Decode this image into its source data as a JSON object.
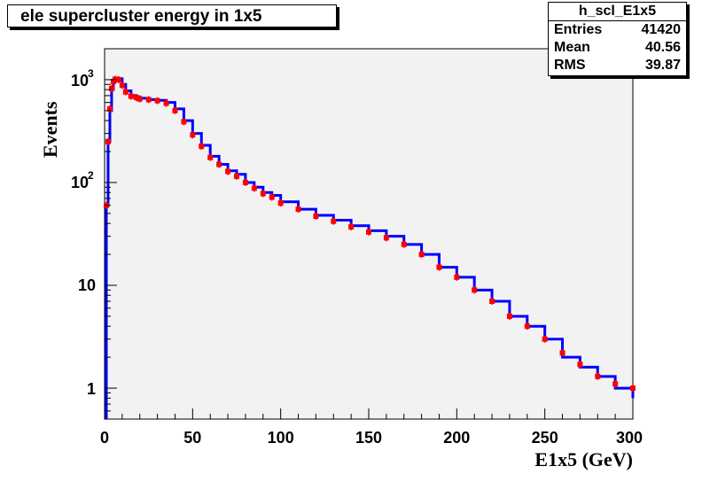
{
  "chart_data": {
    "type": "bar",
    "title": "ele supercluster energy in 1x5",
    "xlabel": "E1x5 (GeV)",
    "ylabel": "Events",
    "xlim": [
      0,
      300
    ],
    "ylim": [
      0.5,
      2000
    ],
    "yscale": "log",
    "grid": false,
    "x_ticks": [
      "0",
      "50",
      "100",
      "150",
      "200",
      "250",
      "300"
    ],
    "y_ticks": [
      "1",
      "10",
      "10^2",
      "10^3"
    ],
    "stats": {
      "name": "h_scl_E1x5",
      "entries_label": "Entries",
      "entries": "41420",
      "mean_label": "Mean",
      "mean": "40.56",
      "rms_label": "RMS",
      "rms": "39.87"
    },
    "series": [
      {
        "color": "#0000ff",
        "style": "histogram",
        "points": [
          [
            1,
            60
          ],
          [
            2,
            250
          ],
          [
            3,
            500
          ],
          [
            4,
            800
          ],
          [
            5,
            950
          ],
          [
            6,
            1000
          ],
          [
            8,
            1020
          ],
          [
            10,
            900
          ],
          [
            12,
            780
          ],
          [
            15,
            700
          ],
          [
            18,
            680
          ],
          [
            20,
            660
          ],
          [
            25,
            640
          ],
          [
            30,
            630
          ],
          [
            35,
            600
          ],
          [
            40,
            520
          ],
          [
            45,
            400
          ],
          [
            50,
            300
          ],
          [
            55,
            230
          ],
          [
            60,
            180
          ],
          [
            65,
            150
          ],
          [
            70,
            130
          ],
          [
            75,
            120
          ],
          [
            80,
            100
          ],
          [
            85,
            90
          ],
          [
            90,
            80
          ],
          [
            95,
            75
          ],
          [
            100,
            65
          ],
          [
            110,
            55
          ],
          [
            120,
            48
          ],
          [
            130,
            43
          ],
          [
            140,
            38
          ],
          [
            150,
            34
          ],
          [
            160,
            30
          ],
          [
            170,
            25
          ],
          [
            180,
            20
          ],
          [
            190,
            15
          ],
          [
            200,
            12
          ],
          [
            210,
            9
          ],
          [
            220,
            7
          ],
          [
            230,
            5
          ],
          [
            240,
            4
          ],
          [
            250,
            3
          ],
          [
            260,
            2
          ],
          [
            270,
            1.6
          ],
          [
            280,
            1.3
          ],
          [
            290,
            1
          ],
          [
            300,
            0.8
          ]
        ]
      },
      {
        "color": "#ff0000",
        "style": "markers",
        "points": [
          [
            1,
            60
          ],
          [
            2,
            250
          ],
          [
            3,
            520
          ],
          [
            4,
            820
          ],
          [
            5,
            960
          ],
          [
            6,
            1010
          ],
          [
            8,
            1000
          ],
          [
            10,
            880
          ],
          [
            12,
            760
          ],
          [
            15,
            690
          ],
          [
            18,
            670
          ],
          [
            20,
            650
          ],
          [
            25,
            640
          ],
          [
            30,
            625
          ],
          [
            35,
            590
          ],
          [
            40,
            500
          ],
          [
            45,
            390
          ],
          [
            50,
            290
          ],
          [
            55,
            225
          ],
          [
            60,
            175
          ],
          [
            65,
            150
          ],
          [
            70,
            128
          ],
          [
            75,
            115
          ],
          [
            80,
            100
          ],
          [
            85,
            88
          ],
          [
            90,
            78
          ],
          [
            95,
            72
          ],
          [
            100,
            63
          ],
          [
            110,
            55
          ],
          [
            120,
            47
          ],
          [
            130,
            42
          ],
          [
            140,
            37
          ],
          [
            150,
            33
          ],
          [
            160,
            29
          ],
          [
            170,
            25
          ],
          [
            180,
            20
          ],
          [
            190,
            15
          ],
          [
            200,
            12
          ],
          [
            210,
            9
          ],
          [
            220,
            7
          ],
          [
            230,
            5
          ],
          [
            240,
            4
          ],
          [
            250,
            3
          ],
          [
            260,
            2.2
          ],
          [
            270,
            1.7
          ],
          [
            280,
            1.3
          ],
          [
            290,
            1.1
          ],
          [
            300,
            1
          ]
        ]
      }
    ]
  }
}
